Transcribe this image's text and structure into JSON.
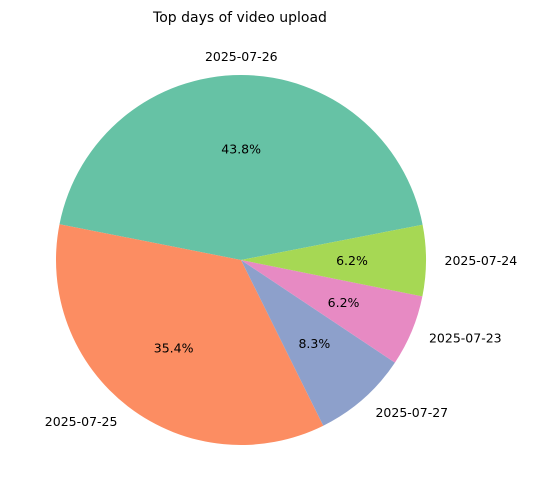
{
  "chart_data": {
    "type": "pie",
    "title": "Top days of video upload",
    "categories": [
      "2025-07-26",
      "2025-07-25",
      "2025-07-27",
      "2025-07-23",
      "2025-07-24"
    ],
    "values": [
      43.8,
      35.4,
      8.3,
      6.2,
      6.2
    ],
    "percent_labels": [
      "43.8%",
      "35.4%",
      "8.3%",
      "6.2%",
      "6.2%"
    ],
    "colors": [
      "#66c2a5",
      "#fc8d62",
      "#8da0cb",
      "#e78ac3",
      "#a6d854"
    ],
    "start_angle_deg": 11,
    "direction": "counterclockwise",
    "legend": "none"
  }
}
